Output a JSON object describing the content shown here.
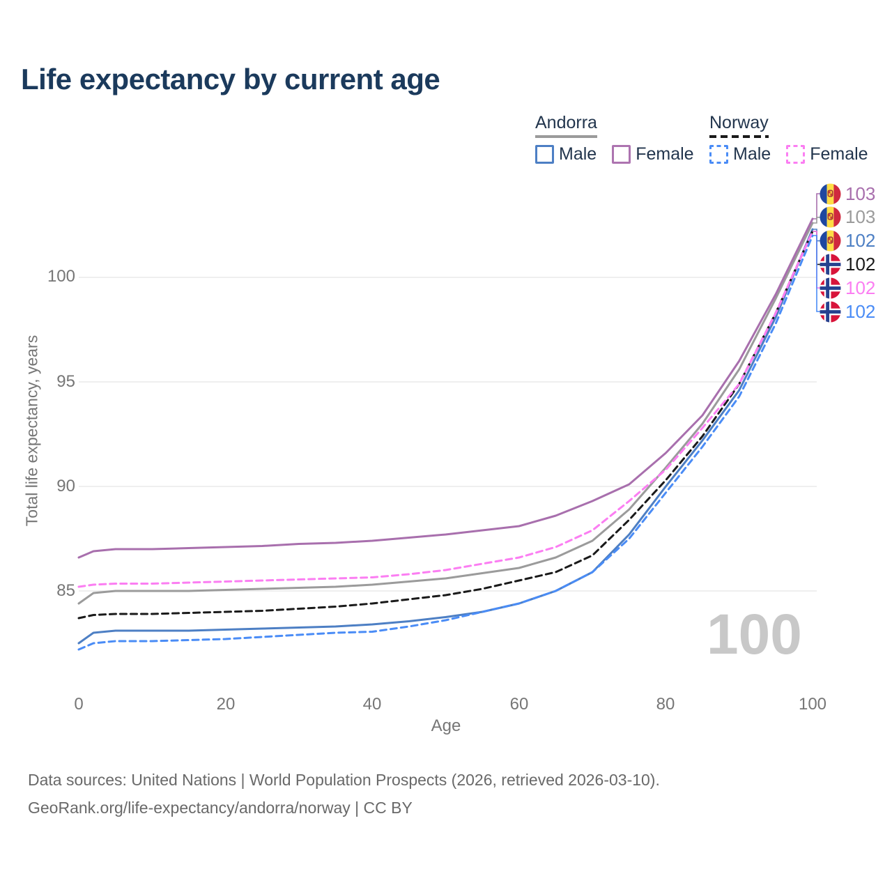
{
  "header": {
    "title": "Life expectancy by current age"
  },
  "legend": {
    "groups": [
      {
        "country": "Andorra",
        "line_color": "#9b9b9b",
        "line_style": "solid",
        "items": [
          {
            "label": "Male",
            "swatch_color": "#4d7fc4",
            "swatch_style": "solid"
          },
          {
            "label": "Female",
            "swatch_color": "#ad74b0",
            "swatch_style": "solid"
          }
        ]
      },
      {
        "country": "Norway",
        "line_color": "#1a1a1a",
        "line_style": "dashed",
        "items": [
          {
            "label": "Male",
            "swatch_color": "#4a8cf6",
            "swatch_style": "dashed"
          },
          {
            "label": "Female",
            "swatch_color": "#fb7ef2",
            "swatch_style": "dashed"
          }
        ]
      }
    ]
  },
  "axes": {
    "y_title": "Total life expectancy, years",
    "x_title": "Age",
    "y_ticks": [
      100,
      95,
      90,
      85
    ],
    "x_ticks": [
      0,
      20,
      40,
      60,
      80,
      100
    ]
  },
  "plot": {
    "watermark": "100",
    "grid_color": "#eaeaea"
  },
  "end_labels": [
    {
      "value": "103",
      "color": "#a86fad",
      "flag": "andorra",
      "series_id": "andorra_female"
    },
    {
      "value": "103",
      "color": "#9b9b9b",
      "flag": "andorra",
      "series_id": "andorra_total"
    },
    {
      "value": "102",
      "color": "#4d7fc4",
      "flag": "andorra",
      "series_id": "andorra_male"
    },
    {
      "value": "102",
      "color": "#1a1a1a",
      "flag": "norway",
      "series_id": "norway_total"
    },
    {
      "value": "102",
      "color": "#fb7ef2",
      "flag": "norway",
      "series_id": "norway_female"
    },
    {
      "value": "102",
      "color": "#4a8cf6",
      "flag": "norway",
      "series_id": "norway_male"
    }
  ],
  "chart_data": {
    "type": "line",
    "title": "Life expectancy by current age",
    "xlabel": "Age",
    "ylabel": "Total life expectancy, years",
    "xlim": [
      0,
      100
    ],
    "ylim": [
      82,
      103
    ],
    "grid": "horizontal-only",
    "legend_position": "top-right",
    "ages": [
      0,
      2,
      5,
      10,
      15,
      20,
      25,
      30,
      35,
      40,
      45,
      50,
      55,
      60,
      65,
      70,
      75,
      80,
      85,
      90,
      95,
      100
    ],
    "series": [
      {
        "id": "andorra_total",
        "name": "Andorra (both sexes)",
        "color": "#9b9b9b",
        "style": "solid",
        "values": [
          84.4,
          84.9,
          85.0,
          85.0,
          85.0,
          85.05,
          85.1,
          85.15,
          85.2,
          85.3,
          85.45,
          85.6,
          85.85,
          86.1,
          86.6,
          87.4,
          88.9,
          90.9,
          93.0,
          95.6,
          99.0,
          102.6
        ]
      },
      {
        "id": "andorra_male",
        "name": "Andorra Male",
        "color": "#4d7fc4",
        "style": "solid",
        "values": [
          82.5,
          83.0,
          83.1,
          83.1,
          83.1,
          83.15,
          83.2,
          83.25,
          83.3,
          83.4,
          83.55,
          83.75,
          84.0,
          84.4,
          85.0,
          85.9,
          87.7,
          90.0,
          92.2,
          94.6,
          98.1,
          102.3
        ]
      },
      {
        "id": "andorra_female",
        "name": "Andorra Female",
        "color": "#a86fad",
        "style": "solid",
        "values": [
          86.6,
          86.9,
          87.0,
          87.0,
          87.05,
          87.1,
          87.15,
          87.25,
          87.3,
          87.4,
          87.55,
          87.7,
          87.9,
          88.1,
          88.6,
          89.3,
          90.1,
          91.6,
          93.4,
          96.0,
          99.2,
          102.8
        ]
      },
      {
        "id": "norway_total",
        "name": "Norway (both sexes)",
        "color": "#1a1a1a",
        "style": "dashed",
        "values": [
          83.7,
          83.85,
          83.9,
          83.9,
          83.95,
          84.0,
          84.05,
          84.15,
          84.25,
          84.4,
          84.6,
          84.8,
          85.1,
          85.5,
          85.9,
          86.7,
          88.4,
          90.3,
          92.4,
          94.9,
          98.3,
          102.2
        ]
      },
      {
        "id": "norway_male",
        "name": "Norway Male",
        "color": "#4a8cf6",
        "style": "dashed",
        "values": [
          82.2,
          82.5,
          82.6,
          82.6,
          82.65,
          82.7,
          82.8,
          82.9,
          83.0,
          83.05,
          83.3,
          83.6,
          84.0,
          84.4,
          85.0,
          85.9,
          87.5,
          89.7,
          91.9,
          94.3,
          97.8,
          102.0
        ]
      },
      {
        "id": "norway_female",
        "name": "Norway Female",
        "color": "#fb7ef2",
        "style": "dashed",
        "values": [
          85.2,
          85.3,
          85.35,
          85.35,
          85.4,
          85.45,
          85.5,
          85.55,
          85.6,
          85.65,
          85.8,
          86.0,
          86.3,
          86.6,
          87.1,
          87.9,
          89.3,
          90.8,
          92.8,
          94.9,
          98.3,
          102.2
        ]
      }
    ]
  },
  "footer": {
    "line1": "Data sources: United Nations | World Population Prospects (2026, retrieved 2026-03-10).",
    "line2": "GeoRank.org/life-expectancy/andorra/norway | CC BY"
  }
}
